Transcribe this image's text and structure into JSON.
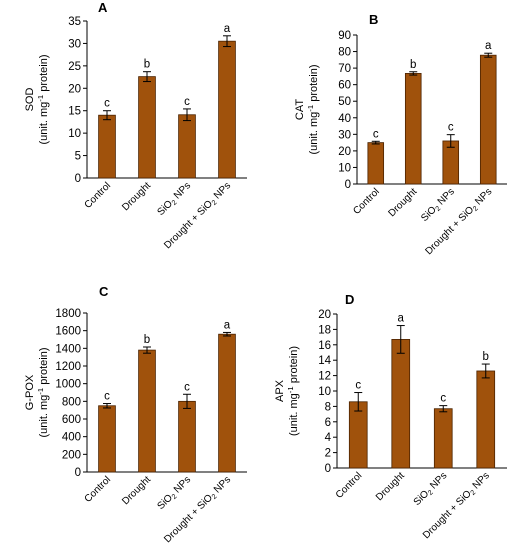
{
  "colors": {
    "bar": "#a0520c",
    "bar_stroke": "#4a2200",
    "axis": "#000000"
  },
  "chart_data": [
    {
      "panel": "A",
      "type": "bar",
      "categories": [
        "Control",
        "Drought",
        "SiO2 NPs",
        "Drought + SiO2 NPs"
      ],
      "values": [
        14.0,
        22.6,
        14.1,
        30.5
      ],
      "errors": [
        1.0,
        1.1,
        1.3,
        1.2
      ],
      "significance": [
        "c",
        "b",
        "c",
        "a"
      ],
      "ylabel": "SOD",
      "yunit": "(unit. mg-1 protein)",
      "ylim": [
        0,
        35
      ],
      "yticks": [
        0,
        5,
        10,
        15,
        20,
        25,
        30,
        35
      ],
      "grid": false
    },
    {
      "panel": "B",
      "type": "bar",
      "categories": [
        "Control",
        "Drought",
        "SiO2 NPs",
        "Drought + SiO2 NPs"
      ],
      "values": [
        25.0,
        66.8,
        26.0,
        77.8
      ],
      "errors": [
        0.8,
        1.0,
        3.8,
        1.2
      ],
      "significance": [
        "c",
        "b",
        "c",
        "a"
      ],
      "ylabel": "CAT",
      "yunit": "(unit. mg-1 protein)",
      "ylim": [
        0,
        90
      ],
      "yticks": [
        0,
        10,
        20,
        30,
        40,
        50,
        60,
        70,
        80,
        90
      ],
      "grid": false
    },
    {
      "panel": "C",
      "type": "bar",
      "categories": [
        "Control",
        "Drought",
        "SiO2 NPs",
        "Drought + SiO2 NPs"
      ],
      "values": [
        750,
        1380,
        800,
        1560
      ],
      "errors": [
        25,
        35,
        80,
        20
      ],
      "significance": [
        "c",
        "b",
        "c",
        "a"
      ],
      "ylabel": "G-POX",
      "yunit": "(unit. mg-1 protein)",
      "ylim": [
        0,
        1800
      ],
      "yticks": [
        0,
        200,
        400,
        600,
        800,
        1000,
        1200,
        1400,
        1600,
        1800
      ],
      "grid": false
    },
    {
      "panel": "D",
      "type": "bar",
      "categories": [
        "Control",
        "Drought",
        "SiO2 NPs",
        "Drought + SiO2 NPs"
      ],
      "values": [
        8.6,
        16.7,
        7.7,
        12.6
      ],
      "errors": [
        1.2,
        1.8,
        0.4,
        0.9
      ],
      "significance": [
        "c",
        "a",
        "c",
        "b"
      ],
      "ylabel": "APX",
      "yunit": "(unit. mg-1 protein)",
      "ylim": [
        0,
        20
      ],
      "yticks": [
        0,
        2,
        4,
        6,
        8,
        10,
        12,
        14,
        16,
        18,
        20
      ],
      "grid": false
    }
  ]
}
